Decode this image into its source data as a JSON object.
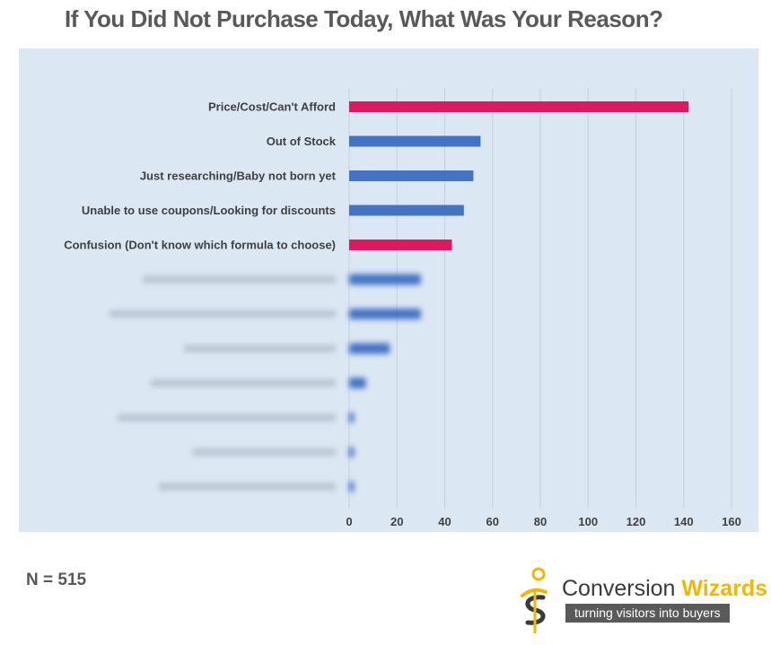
{
  "title": "If You Did Not Purchase Today, What Was Your Reason?",
  "sample_size": "N = 515",
  "logo": {
    "name_part1": "Conversion ",
    "name_part2": "Wizards",
    "tagline": "turning visitors into buyers"
  },
  "colors": {
    "highlight": "#e0185f",
    "standard": "#4472c4",
    "panel": "#dce7f4",
    "grid": "#c4cfdc"
  },
  "chart_data": {
    "type": "bar",
    "orientation": "horizontal",
    "categories": [
      "Price/Cost/Can't Afford",
      "Out of Stock",
      "Just researching/Baby not born yet",
      "Unable to use coupons/Looking for discounts",
      "Confusion (Don't know which formula to choose)",
      "",
      "",
      "",
      "",
      "",
      "",
      ""
    ],
    "values": [
      142,
      55,
      52,
      48,
      43,
      30,
      30,
      17,
      7,
      2,
      2,
      2
    ],
    "bar_colors": [
      "highlight",
      "standard",
      "standard",
      "standard",
      "highlight",
      "standard",
      "standard",
      "standard",
      "standard",
      "standard",
      "standard",
      "standard"
    ],
    "blurred_from_index": 5,
    "xlim": [
      0,
      160
    ],
    "xticks": [
      0,
      20,
      40,
      60,
      80,
      100,
      120,
      140,
      160
    ],
    "grid": "vertical",
    "xlabel": "",
    "ylabel": ""
  }
}
